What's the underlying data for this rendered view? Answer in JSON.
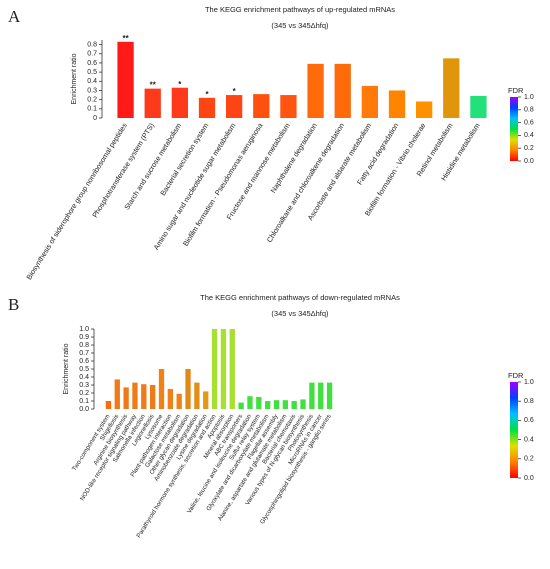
{
  "chart_data": [
    {
      "type": "bar",
      "panel_label": "A",
      "title": "The KEGG enrichment pathways of up-regulated mRNAs",
      "subtitle": "(345 vs 345Δhfq)",
      "y_label": "Enrichment ratio",
      "categories": [
        "Biosynthesis of siderophore group nonribosomal peptides",
        "Phosphotransferase system (PTS)",
        "Starch and sucrose metabolism",
        "Bacterial secretion system",
        "Amino sugar and nucleotide sugar metabolism",
        "Biofilm formation - Pseudomonas aeruginosa",
        "Fructose and mannose metabolism",
        "Naphthalene degradation",
        "Chloroalkane and chloroalkene degradation",
        "Ascorbate and aldarate metabolism",
        "Fatty acid degradation",
        "Biofilm formation - Vibrio cholerae",
        "Retinol metabolism",
        "Histidine metabolism"
      ],
      "values": [
        0.83,
        0.32,
        0.33,
        0.22,
        0.25,
        0.26,
        0.25,
        0.59,
        0.59,
        0.35,
        0.3,
        0.18,
        0.65,
        0.24
      ],
      "significance": [
        "**",
        "**",
        "*",
        "*",
        "*",
        null,
        null,
        null,
        null,
        null,
        null,
        null,
        null,
        null
      ],
      "colors": [
        "#ff1a1a",
        "#ff3a1a",
        "#ff3a1a",
        "#ff4514",
        "#ff4514",
        "#ff5010",
        "#ff5510",
        "#ff6a0a",
        "#ff6a0a",
        "#ff7a0a",
        "#ff8400",
        "#ff9000",
        "#e0960a",
        "#22e07a"
      ],
      "ylim": [
        0,
        0.85
      ],
      "yticks": [
        0,
        0.1,
        0.2,
        0.3,
        0.4,
        0.5,
        0.6,
        0.7,
        0.8
      ],
      "colorbar": {
        "label": "FDR",
        "lim": [
          0,
          1
        ],
        "ticks": [
          {
            "value": 0,
            "label": "0.0"
          },
          0.2,
          0.4,
          0.6,
          0.8,
          {
            "value": 1,
            "label": "1.0"
          }
        ],
        "colors": [
          "#ff0000",
          "#ff8000",
          "#e0e000",
          "#00e040",
          "#00c0ff",
          "#0040ff",
          "#a000ff"
        ]
      }
    },
    {
      "type": "bar",
      "panel_label": "B",
      "title": "The KEGG enrichment pathways of down-regulated mRNAs",
      "subtitle": "(345 vs 345Δhfq)",
      "y_label": "Enrichment ratio",
      "categories": [
        "Two-component system",
        "Shigellosis",
        "Arginine biosynthesis",
        "NOD-like receptor signaling pathway",
        "Salmonella infection",
        "Legionellosis",
        "Lysosome",
        "Plant-pathogen interaction",
        "Galactose metabolism",
        "Other glycan degradation",
        "Aminobenzoate degradation",
        "Lysine degradation",
        "Parathyroid hormone synthesis, secretion and action",
        "Apoptosis",
        "Mineral absorption",
        "ABC transporters",
        "Valine, leucine and isoleucine degradation",
        "Sulfur relay system",
        "Glyoxylate and dicarboxylate metabolism",
        "Flagellar assembly",
        "Alanine, aspartate and glutamate metabolism",
        "Bacterial chemotaxis",
        "Various types of N-glycan biosynthesis",
        "Photosynthesis",
        "MicroRNAs in cancer",
        "Glycosphingolipid biosynthesis - ganglio series"
      ],
      "values": [
        0.1,
        0.37,
        0.27,
        0.33,
        0.31,
        0.3,
        0.5,
        0.25,
        0.19,
        0.5,
        0.33,
        0.22,
        1.0,
        1.0,
        1.0,
        0.08,
        0.16,
        0.15,
        0.1,
        0.11,
        0.11,
        0.1,
        0.12,
        0.33,
        0.33,
        0.33
      ],
      "colors": [
        "#ff6a10",
        "#f07a18",
        "#f07a18",
        "#f07a18",
        "#f07a18",
        "#f07a18",
        "#f08018",
        "#f08018",
        "#f08018",
        "#e08818",
        "#e09018",
        "#e09a18",
        "#a8e030",
        "#a8e030",
        "#a8e030",
        "#40e040",
        "#40e040",
        "#40e040",
        "#40e040",
        "#40e040",
        "#40e040",
        "#40e040",
        "#40e040",
        "#40e040",
        "#40e040",
        "#40e040"
      ],
      "ylim": [
        0,
        1.0
      ],
      "yticks": [
        {
          "value": 0,
          "label": "0.0"
        },
        0.1,
        0.2,
        0.3,
        0.4,
        0.5,
        0.6,
        0.7,
        0.8,
        0.9,
        {
          "value": 1,
          "label": "1.0"
        }
      ],
      "colorbar": {
        "label": "FDR",
        "lim": [
          0,
          1
        ],
        "ticks": [
          {
            "value": 0,
            "label": "0.0"
          },
          0.2,
          0.4,
          0.6,
          0.8,
          {
            "value": 1,
            "label": "1.0"
          }
        ],
        "colors": [
          "#ff0000",
          "#ff8000",
          "#e0e000",
          "#00e040",
          "#00c0ff",
          "#0040ff",
          "#a000ff"
        ]
      }
    }
  ]
}
